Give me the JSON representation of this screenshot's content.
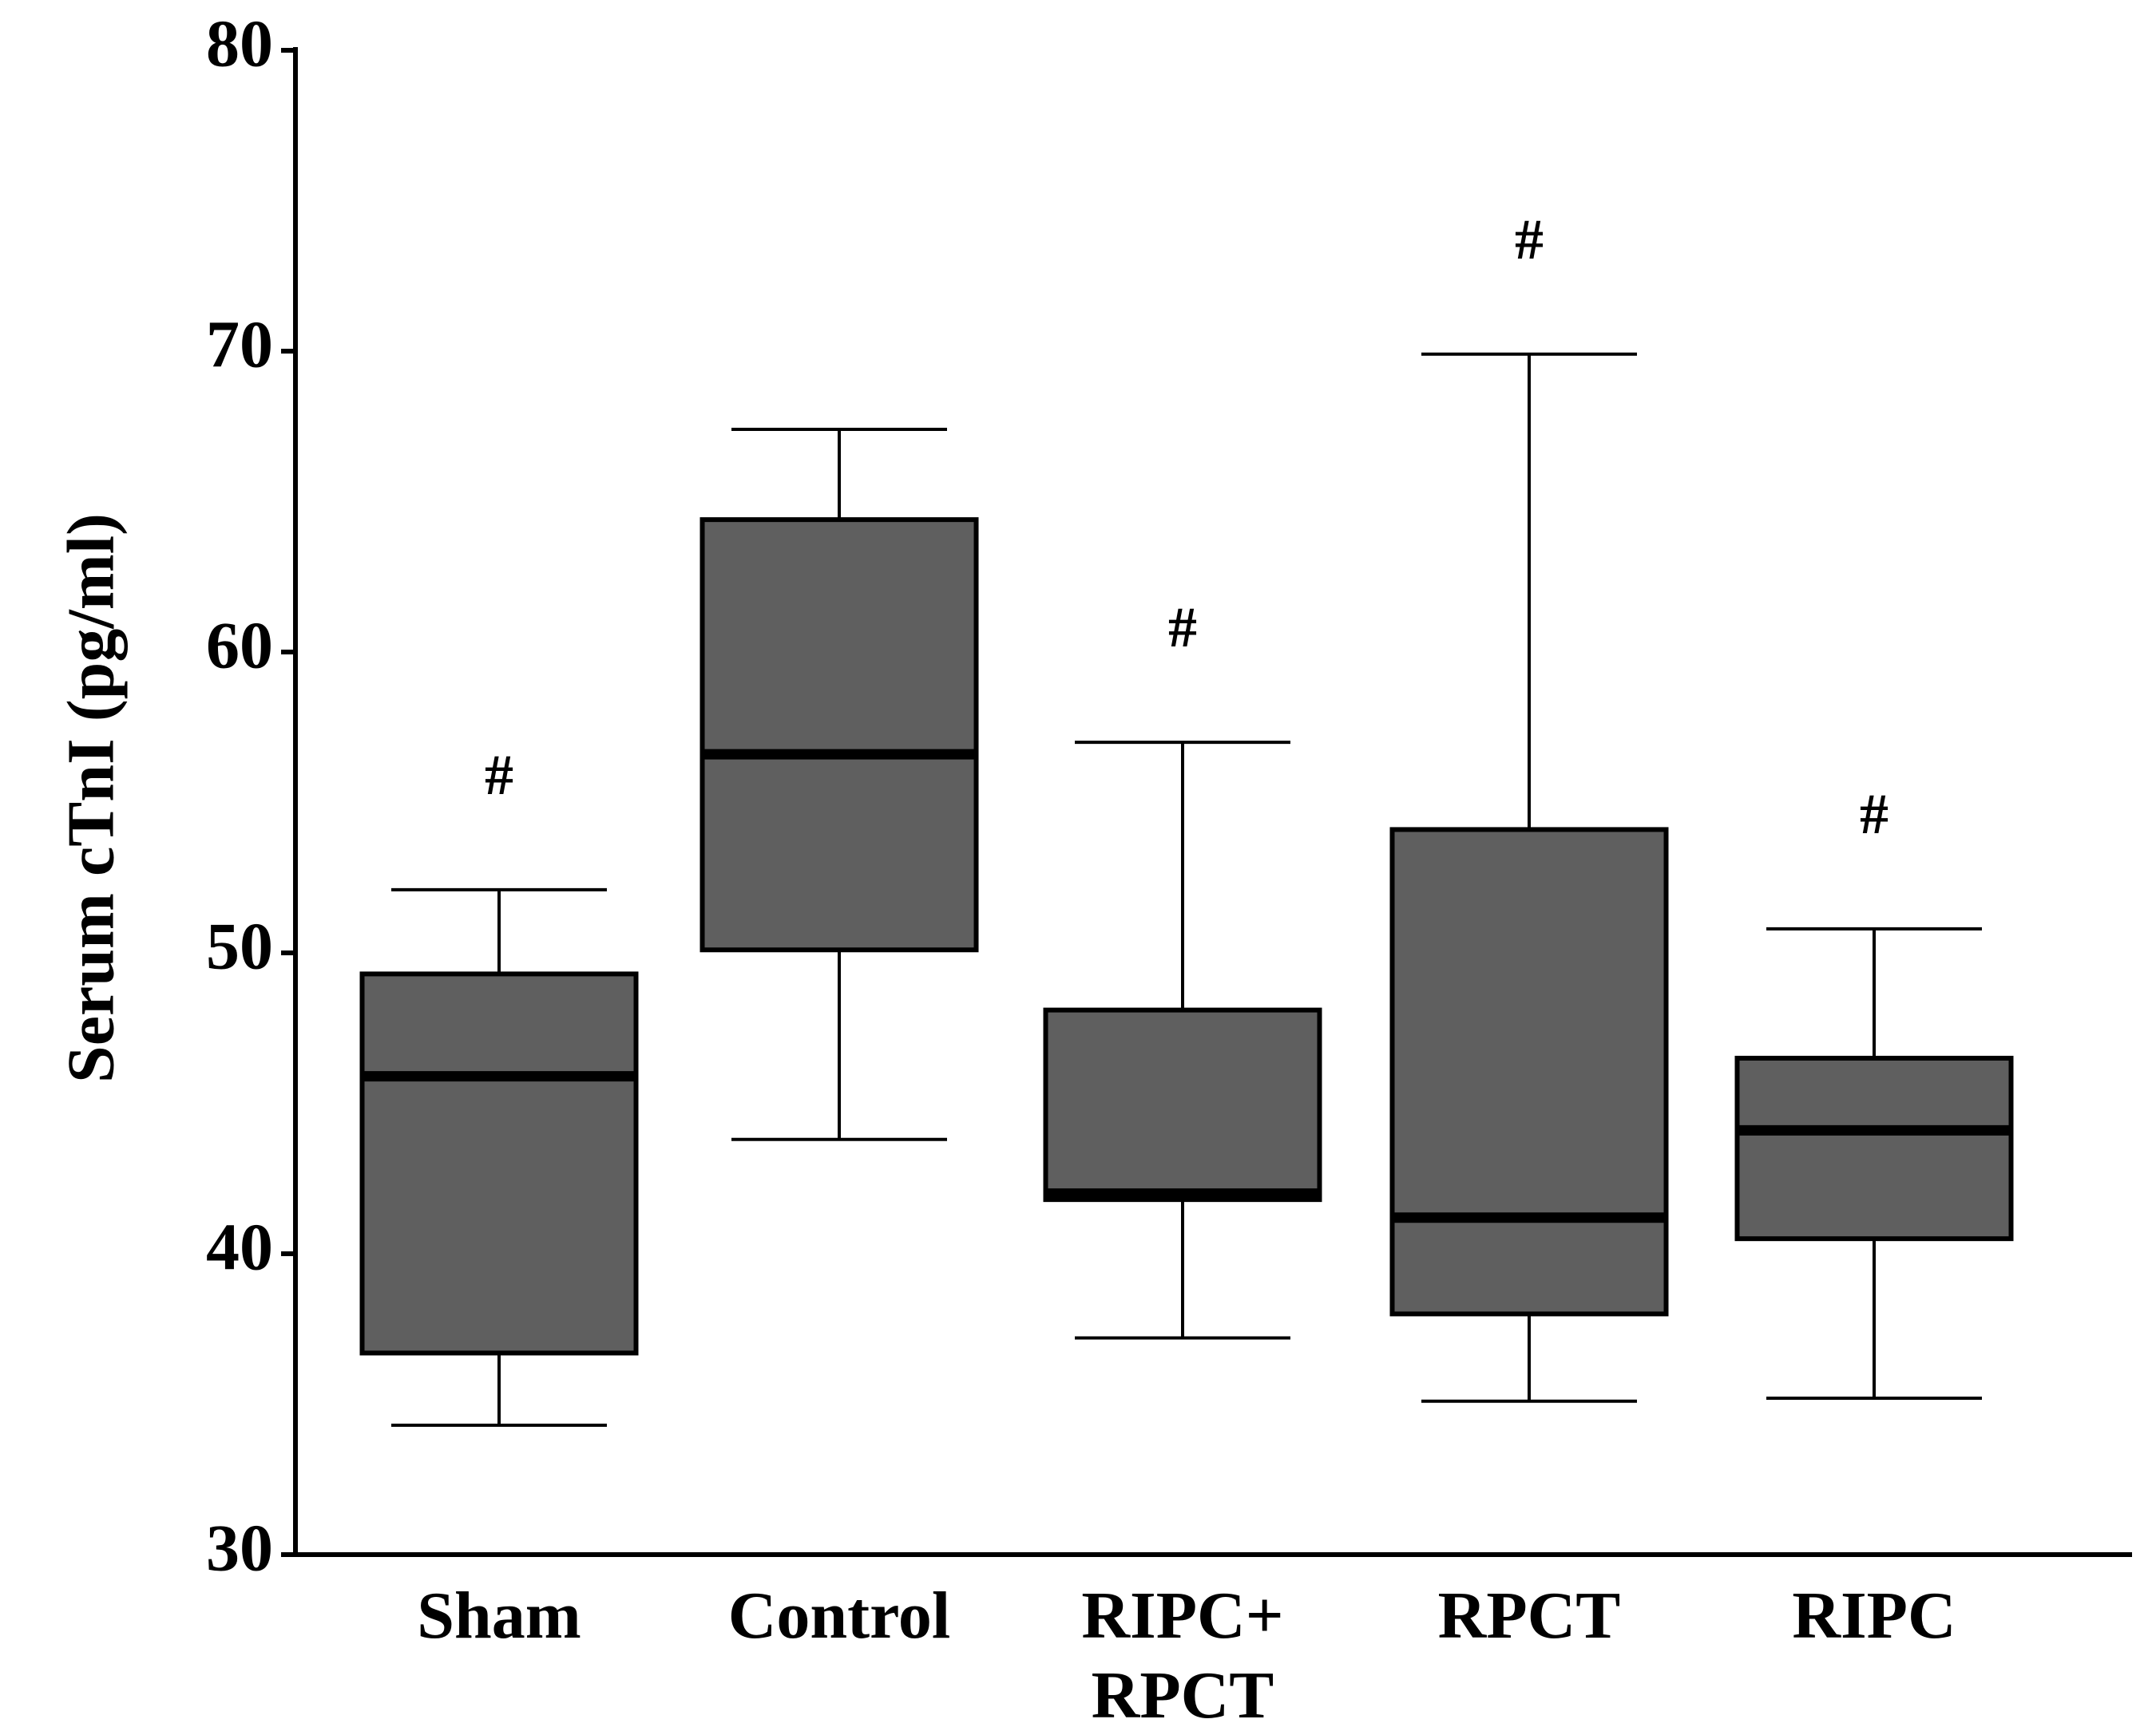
{
  "chart_data": {
    "type": "box",
    "y_label": "Serum cTnI (pg/ml)",
    "categories": [
      "Sham",
      "Control",
      "RIPC+\nRPCT",
      "RPCT",
      "RIPC"
    ],
    "min": [
      34.3,
      43.8,
      37.2,
      35.1,
      35.2
    ],
    "q1": [
      36.7,
      50.1,
      41.8,
      38.0,
      40.5
    ],
    "median": [
      45.9,
      56.6,
      42.0,
      41.2,
      44.1
    ],
    "q3": [
      49.3,
      64.4,
      48.1,
      54.1,
      46.5
    ],
    "max": [
      52.1,
      67.4,
      57.0,
      69.9,
      50.8
    ],
    "annotations": [
      "#",
      null,
      "#",
      "#",
      "#"
    ],
    "color": "#5f5f5f",
    "ylim": [
      30,
      80
    ],
    "yticks": [
      30,
      40,
      50,
      60,
      70,
      80
    ],
    "grid": false
  }
}
